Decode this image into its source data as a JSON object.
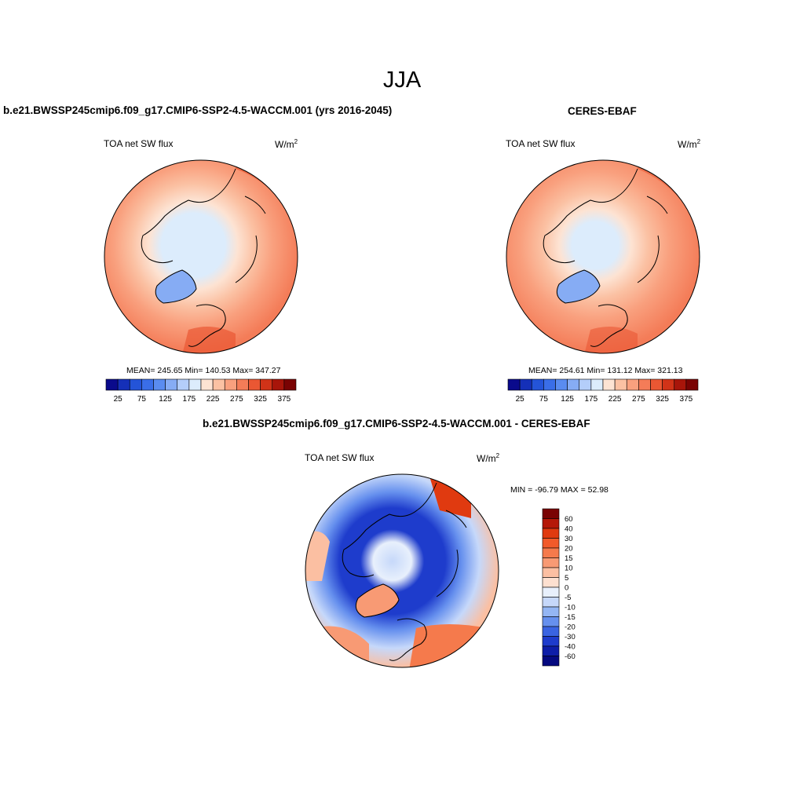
{
  "figure": {
    "season": "JJA"
  },
  "panels": {
    "model": {
      "title": "b.e21.BWSSP245cmip6.f09_g17.CMIP6-SSP2-4.5-WACCM.001 (yrs 2016-2045)",
      "variable": "TOA net SW flux",
      "units": "W/m",
      "units_sup": "2",
      "stats": "MEAN= 245.65  Min= 140.53  Max= 347.27"
    },
    "obs": {
      "title": "CERES-EBAF",
      "variable": "TOA net SW flux",
      "units": "W/m",
      "units_sup": "2",
      "stats": "MEAN= 254.61  Min= 131.12  Max= 321.13"
    },
    "diff": {
      "title": "b.e21.BWSSP245cmip6.f09_g17.CMIP6-SSP2-4.5-WACCM.001 - CERES-EBAF",
      "variable": "TOA net SW flux",
      "units": "W/m",
      "units_sup": "2",
      "stats": "MIN = -96.79 MAX =  52.98"
    }
  },
  "chart_data": [
    {
      "type": "heatmap",
      "projection": "north-polar-stereographic",
      "title": "b.e21.BWSSP245cmip6.f09_g17.CMIP6-SSP2-4.5-WACCM.001 (yrs 2016-2045)",
      "variable": "TOA net SW flux",
      "units": "W/m2",
      "mean": 245.65,
      "min": 140.53,
      "max": 347.27,
      "colorbar": {
        "orientation": "horizontal",
        "levels": [
          25,
          50,
          75,
          100,
          125,
          150,
          175,
          200,
          225,
          250,
          275,
          300,
          325,
          350,
          375
        ],
        "tick_labels": [
          "25",
          "75",
          "125",
          "175",
          "225",
          "275",
          "325",
          "375"
        ],
        "colors": [
          "#0a0a8c",
          "#1530b8",
          "#2454d8",
          "#3a6ee8",
          "#5a8cf0",
          "#86acf4",
          "#b4cefa",
          "#dcecfc",
          "#fde3d3",
          "#fbc1a3",
          "#f9a07e",
          "#f47c58",
          "#ea5733",
          "#d13318",
          "#a8150a",
          "#7a0303"
        ]
      }
    },
    {
      "type": "heatmap",
      "projection": "north-polar-stereographic",
      "title": "CERES-EBAF",
      "variable": "TOA net SW flux",
      "units": "W/m2",
      "mean": 254.61,
      "min": 131.12,
      "max": 321.13,
      "colorbar": {
        "orientation": "horizontal",
        "levels": [
          25,
          50,
          75,
          100,
          125,
          150,
          175,
          200,
          225,
          250,
          275,
          300,
          325,
          350,
          375
        ],
        "tick_labels": [
          "25",
          "75",
          "125",
          "175",
          "225",
          "275",
          "325",
          "375"
        ],
        "colors": [
          "#0a0a8c",
          "#1530b8",
          "#2454d8",
          "#3a6ee8",
          "#5a8cf0",
          "#86acf4",
          "#b4cefa",
          "#dcecfc",
          "#fde3d3",
          "#fbc1a3",
          "#f9a07e",
          "#f47c58",
          "#ea5733",
          "#d13318",
          "#a8150a",
          "#7a0303"
        ]
      }
    },
    {
      "type": "heatmap",
      "projection": "north-polar-stereographic",
      "title": "b.e21.BWSSP245cmip6.f09_g17.CMIP6-SSP2-4.5-WACCM.001 - CERES-EBAF",
      "variable": "TOA net SW flux",
      "units": "W/m2",
      "min": -96.79,
      "max": 52.98,
      "colorbar": {
        "orientation": "vertical",
        "tick_labels": [
          "60",
          "40",
          "30",
          "20",
          "15",
          "10",
          "5",
          "0",
          "-5",
          "-10",
          "-15",
          "-20",
          "-30",
          "-40",
          "-60"
        ],
        "colors": [
          "#7a0303",
          "#b51808",
          "#e03a10",
          "#f25a2a",
          "#f57a4c",
          "#f89a74",
          "#fbbfa2",
          "#fde0d0",
          "#e8f0fc",
          "#c6d8fa",
          "#94b6f4",
          "#6690ee",
          "#3a64e2",
          "#1e3ccc",
          "#0e1ea8",
          "#050a80"
        ]
      }
    }
  ]
}
